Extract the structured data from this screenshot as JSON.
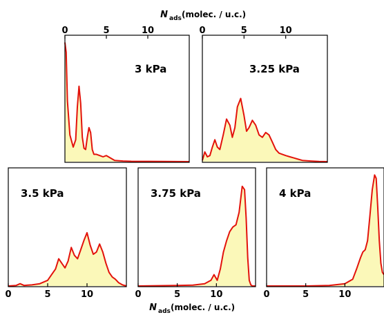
{
  "colors": {
    "line": "#e3120b",
    "fill": "#fbf8b9",
    "frame": "#000000"
  },
  "axis_title": {
    "var": "N",
    "sub": "ads",
    "unit": "(molec. / u.c.)"
  },
  "chart_data": [
    {
      "type": "area",
      "label": "3 kPa",
      "xlim": [
        0,
        15
      ],
      "ticks": [
        0,
        5,
        10
      ],
      "tick_position": "top",
      "x": [
        0,
        0.15,
        0.3,
        0.6,
        1.0,
        1.3,
        1.5,
        1.7,
        1.9,
        2.1,
        2.3,
        2.5,
        2.7,
        2.9,
        3.1,
        3.3,
        3.5,
        3.8,
        4.2,
        4.6,
        5.0,
        5.5,
        6.0,
        7,
        8,
        10,
        12,
        15
      ],
      "y": [
        0.98,
        0.9,
        0.5,
        0.22,
        0.12,
        0.18,
        0.45,
        0.62,
        0.48,
        0.2,
        0.11,
        0.1,
        0.2,
        0.28,
        0.24,
        0.1,
        0.06,
        0.06,
        0.05,
        0.04,
        0.05,
        0.03,
        0.01,
        0.005,
        0.003,
        0.002,
        0.001,
        0
      ]
    },
    {
      "type": "area",
      "label": "3.25 kPa",
      "xlim": [
        0,
        15
      ],
      "ticks": [
        0,
        5,
        10
      ],
      "tick_position": "top",
      "x": [
        0,
        0.3,
        0.6,
        0.9,
        1.2,
        1.5,
        1.8,
        2.1,
        2.5,
        2.9,
        3.3,
        3.6,
        3.9,
        4.2,
        4.6,
        5.0,
        5.3,
        5.6,
        6.0,
        6.4,
        6.8,
        7.2,
        7.6,
        8.0,
        8.4,
        8.8,
        9.2,
        9.6,
        10.0,
        10.5,
        11,
        11.5,
        12,
        13,
        14,
        15
      ],
      "y": [
        0.01,
        0.08,
        0.04,
        0.05,
        0.12,
        0.18,
        0.12,
        0.1,
        0.22,
        0.35,
        0.3,
        0.2,
        0.28,
        0.45,
        0.52,
        0.38,
        0.25,
        0.28,
        0.34,
        0.3,
        0.22,
        0.2,
        0.24,
        0.22,
        0.16,
        0.1,
        0.07,
        0.06,
        0.05,
        0.04,
        0.03,
        0.02,
        0.01,
        0.005,
        0.001,
        0
      ]
    },
    {
      "type": "area",
      "label": "3.5 kPa",
      "xlim": [
        0,
        15
      ],
      "ticks": [
        0,
        5,
        10
      ],
      "tick_position": "bottom",
      "x": [
        0,
        1.0,
        1.5,
        2.0,
        2.5,
        3,
        4,
        5,
        5.5,
        6.0,
        6.4,
        6.8,
        7.2,
        7.6,
        8.0,
        8.4,
        8.8,
        9.2,
        9.6,
        10.0,
        10.4,
        10.8,
        11.2,
        11.6,
        12.0,
        12.4,
        12.8,
        13.2,
        13.6,
        14,
        14.5,
        15
      ],
      "y": [
        0,
        0.005,
        0.02,
        0.005,
        0.008,
        0.01,
        0.02,
        0.05,
        0.1,
        0.15,
        0.24,
        0.2,
        0.16,
        0.22,
        0.34,
        0.27,
        0.24,
        0.32,
        0.4,
        0.47,
        0.36,
        0.28,
        0.3,
        0.37,
        0.3,
        0.2,
        0.12,
        0.08,
        0.06,
        0.03,
        0.01,
        0
      ]
    },
    {
      "type": "area",
      "label": "3.75 kPa",
      "xlim": [
        0,
        15
      ],
      "ticks": [
        0,
        5,
        10
      ],
      "tick_position": "bottom",
      "x": [
        0,
        5,
        7,
        8.5,
        9.3,
        9.7,
        10.1,
        10.5,
        10.9,
        11.3,
        11.7,
        12.1,
        12.5,
        12.9,
        13.3,
        13.6,
        13.8,
        14.0,
        14.2,
        14.4,
        14.6,
        15
      ],
      "y": [
        0,
        0.005,
        0.008,
        0.02,
        0.05,
        0.1,
        0.05,
        0.15,
        0.3,
        0.4,
        0.48,
        0.52,
        0.54,
        0.65,
        0.88,
        0.85,
        0.6,
        0.25,
        0.05,
        0.01,
        0,
        0
      ]
    },
    {
      "type": "area",
      "label": "4 kPa",
      "xlim": [
        0,
        15
      ],
      "ticks": [
        0,
        5,
        10
      ],
      "tick_position": "bottom",
      "x": [
        0,
        5,
        8,
        10,
        11,
        11.5,
        12.0,
        12.3,
        12.6,
        12.9,
        13.2,
        13.5,
        13.8,
        14.0,
        14.2,
        14.4,
        14.6,
        14.8,
        15
      ],
      "y": [
        0,
        0,
        0.005,
        0.02,
        0.06,
        0.15,
        0.25,
        0.3,
        0.32,
        0.4,
        0.62,
        0.85,
        0.98,
        0.95,
        0.7,
        0.4,
        0.2,
        0.12,
        0.1
      ]
    }
  ]
}
